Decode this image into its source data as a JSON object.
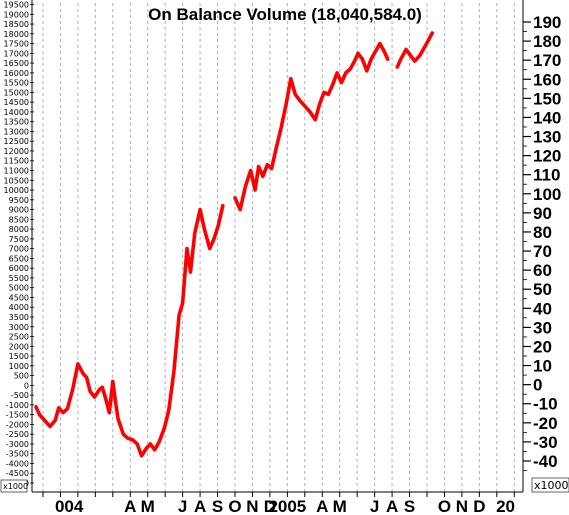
{
  "chart_data": {
    "type": "line",
    "title": "On Balance Volume (18,040,584.0)",
    "left_unit": "x1000",
    "right_unit": "x1000",
    "left_axis": {
      "ylim": [
        -5000,
        19500
      ],
      "ticks": [
        19500,
        19000,
        18500,
        18000,
        17500,
        17000,
        16500,
        16000,
        15500,
        15000,
        14500,
        14000,
        13500,
        13000,
        12500,
        12000,
        11500,
        11000,
        10500,
        10000,
        9500,
        9000,
        8500,
        8000,
        7500,
        7000,
        6500,
        6000,
        5500,
        5000,
        4500,
        4000,
        3500,
        3000,
        2500,
        2000,
        1500,
        1000,
        500,
        0,
        -500,
        -1000,
        -1500,
        -2000,
        -2500,
        -3000,
        -3500,
        -4000,
        -4500,
        -5000
      ]
    },
    "right_axis": {
      "ylim": [
        -50,
        195
      ],
      "ticks": [
        190,
        180,
        170,
        160,
        150,
        140,
        130,
        120,
        110,
        100,
        90,
        80,
        70,
        60,
        50,
        40,
        30,
        20,
        10,
        0,
        -10,
        -20,
        -30,
        -40
      ]
    },
    "x_axis": {
      "labels": [
        "004",
        "A",
        "M",
        "J",
        "A",
        "S",
        "O",
        "N",
        "D",
        "2005",
        "A",
        "M",
        "J",
        "A",
        "S",
        "O",
        "N",
        "D",
        "20"
      ],
      "label_positions": [
        2.5,
        6,
        7,
        9,
        10,
        11,
        12,
        13,
        14,
        15,
        17,
        18,
        20,
        21,
        22,
        24,
        25,
        26,
        27.5
      ],
      "gridlines": [
        1,
        2,
        3,
        4,
        5,
        6,
        7,
        8,
        9,
        10,
        11,
        12,
        13,
        14,
        15,
        16,
        17,
        18,
        19,
        20,
        21,
        22,
        23,
        24,
        25,
        26,
        27,
        28
      ],
      "xlim": [
        0.6,
        28.5
      ]
    },
    "grid": true,
    "series": [
      {
        "color": "#ff0000",
        "segments": [
          [
            [
              0.6,
              -1100
            ],
            [
              0.8,
              -1500
            ],
            [
              1.1,
              -1800
            ],
            [
              1.4,
              -2100
            ],
            [
              1.7,
              -1800
            ],
            [
              1.9,
              -1150
            ],
            [
              2.15,
              -1400
            ],
            [
              2.4,
              -1200
            ],
            [
              2.7,
              -200
            ],
            [
              3.0,
              1100
            ],
            [
              3.3,
              600
            ],
            [
              3.5,
              400
            ],
            [
              3.7,
              -300
            ],
            [
              3.95,
              -600
            ],
            [
              4.25,
              -200
            ],
            [
              4.4,
              -100
            ],
            [
              4.6,
              -700
            ],
            [
              4.8,
              -1400
            ],
            [
              5.0,
              200
            ],
            [
              5.15,
              -800
            ],
            [
              5.3,
              -1700
            ],
            [
              5.6,
              -2500
            ],
            [
              5.85,
              -2700
            ],
            [
              6.15,
              -2800
            ],
            [
              6.4,
              -3000
            ],
            [
              6.65,
              -3600
            ],
            [
              6.95,
              -3200
            ],
            [
              7.15,
              -3000
            ],
            [
              7.4,
              -3300
            ],
            [
              7.65,
              -2900
            ],
            [
              7.95,
              -2200
            ],
            [
              8.2,
              -1300
            ],
            [
              8.5,
              700
            ],
            [
              8.8,
              3600
            ],
            [
              9.0,
              4200
            ],
            [
              9.25,
              7000
            ],
            [
              9.45,
              5800
            ],
            [
              9.7,
              7800
            ],
            [
              10.0,
              9000
            ],
            [
              10.25,
              8000
            ],
            [
              10.55,
              7000
            ],
            [
              10.8,
              7500
            ],
            [
              11.05,
              8200
            ],
            [
              11.3,
              9200
            ]
          ],
          [
            [
              12.0,
              9600
            ],
            [
              12.3,
              9000
            ],
            [
              12.6,
              10200
            ],
            [
              12.9,
              11000
            ],
            [
              13.15,
              10000
            ],
            [
              13.35,
              11200
            ],
            [
              13.6,
              10700
            ],
            [
              13.85,
              11300
            ],
            [
              14.1,
              11100
            ],
            [
              14.35,
              12100
            ],
            [
              14.65,
              13200
            ],
            [
              14.95,
              14500
            ],
            [
              15.2,
              15700
            ],
            [
              15.45,
              14900
            ],
            [
              15.7,
              14600
            ],
            [
              16.0,
              14300
            ],
            [
              16.3,
              14000
            ],
            [
              16.6,
              13600
            ],
            [
              16.85,
              14400
            ],
            [
              17.1,
              15000
            ],
            [
              17.35,
              14900
            ],
            [
              17.6,
              15400
            ],
            [
              17.85,
              16000
            ],
            [
              18.1,
              15500
            ],
            [
              18.35,
              16000
            ],
            [
              18.6,
              16200
            ],
            [
              18.85,
              16600
            ],
            [
              19.05,
              17000
            ],
            [
              19.3,
              16700
            ],
            [
              19.55,
              16100
            ],
            [
              19.8,
              16700
            ],
            [
              20.05,
              17100
            ],
            [
              20.3,
              17500
            ],
            [
              20.55,
              17100
            ],
            [
              20.75,
              16700
            ]
          ],
          [
            [
              21.3,
              16300
            ],
            [
              21.5,
              16700
            ],
            [
              21.8,
              17200
            ],
            [
              22.05,
              16900
            ],
            [
              22.3,
              16600
            ],
            [
              22.6,
              16900
            ],
            [
              22.85,
              17300
            ],
            [
              23.1,
              17700
            ],
            [
              23.3,
              18040
            ]
          ]
        ]
      }
    ]
  }
}
